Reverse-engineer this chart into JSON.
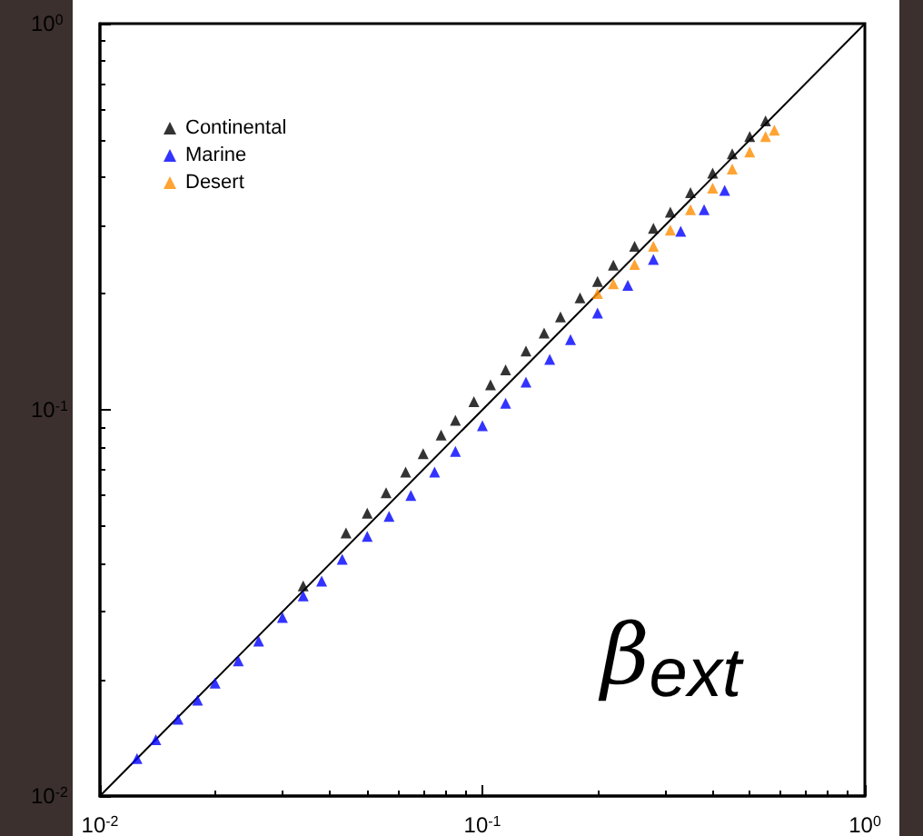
{
  "chart_data": {
    "type": "scatter",
    "marker": "triangle",
    "legend": "top left",
    "grid": false,
    "log": "xy",
    "xlim": [
      0.01,
      1
    ],
    "ylim": [
      0.01,
      1
    ],
    "xticks": [
      {
        "value": 0.01,
        "label": "10$^{-2}$"
      },
      {
        "value": 0.1,
        "label": "10$^{-1}$"
      },
      {
        "value": 1,
        "label": "10$^{0}$"
      }
    ],
    "yticks": [
      {
        "value": 0.01,
        "label": "10$^{-2}$"
      },
      {
        "value": 0.1,
        "label": "10$^{-1}$"
      },
      {
        "value": 1,
        "label": "10$^{0}$"
      }
    ],
    "annotations": [
      "β$_{ext}$"
    ],
    "series": [
      {
        "type": "line",
        "marker": "none",
        "color": "#000000",
        "x": [
          0.01,
          1
        ],
        "values": [
          0.01,
          1
        ]
      },
      {
        "name": "Continental",
        "color": "#000000",
        "x": [
          0.034,
          0.044,
          0.05,
          0.056,
          0.063,
          0.07,
          0.078,
          0.085,
          0.095,
          0.105,
          0.115,
          0.13,
          0.145,
          0.16,
          0.18,
          0.2,
          0.22,
          0.25,
          0.28,
          0.31,
          0.35,
          0.4,
          0.45,
          0.5,
          0.55
        ],
        "values": [
          0.035,
          0.048,
          0.054,
          0.061,
          0.069,
          0.077,
          0.086,
          0.094,
          0.105,
          0.116,
          0.127,
          0.142,
          0.158,
          0.174,
          0.195,
          0.215,
          0.237,
          0.265,
          0.295,
          0.325,
          0.365,
          0.41,
          0.46,
          0.51,
          0.56
        ]
      },
      {
        "name": "Marine",
        "color": "#0000ff",
        "x": [
          0.0125,
          0.014,
          0.016,
          0.018,
          0.02,
          0.023,
          0.026,
          0.03,
          0.034,
          0.038,
          0.043,
          0.05,
          0.057,
          0.065,
          0.075,
          0.085,
          0.1,
          0.115,
          0.13,
          0.15,
          0.17,
          0.2,
          0.24,
          0.28,
          0.33,
          0.38,
          0.43
        ],
        "values": [
          0.0125,
          0.014,
          0.0158,
          0.0177,
          0.0196,
          0.0224,
          0.0252,
          0.029,
          0.033,
          0.036,
          0.041,
          0.047,
          0.053,
          0.06,
          0.069,
          0.078,
          0.091,
          0.104,
          0.118,
          0.135,
          0.152,
          0.178,
          0.21,
          0.245,
          0.29,
          0.33,
          0.37
        ]
      },
      {
        "name": "Desert",
        "color": "#ff8c00",
        "x": [
          0.2,
          0.22,
          0.25,
          0.28,
          0.31,
          0.35,
          0.4,
          0.45,
          0.5,
          0.55,
          0.58
        ],
        "values": [
          0.2,
          0.212,
          0.238,
          0.265,
          0.292,
          0.33,
          0.375,
          0.42,
          0.465,
          0.51,
          0.53
        ]
      }
    ]
  }
}
